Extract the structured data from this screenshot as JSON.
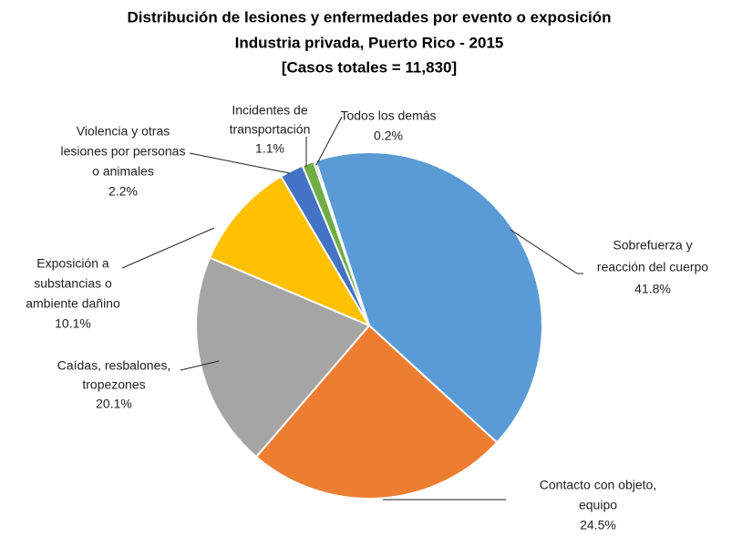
{
  "chart_data": {
    "type": "pie",
    "title": [
      "Distribución de lesiones y enfermedades por evento o exposición",
      "Industria privada, Puerto Rico - 2015",
      "[Casos totales = 11,830]"
    ],
    "categories": [
      [
        "Sobrefuerza y",
        "reacción del cuerpo"
      ],
      [
        "Contacto con objeto,",
        "equipo"
      ],
      [
        "Caídas, resbalones,",
        "tropezones"
      ],
      [
        "Exposición a",
        "substancias o",
        "ambiente dañino"
      ],
      [
        "Violencia y otras",
        "lesiones por personas",
        "o animales"
      ],
      [
        "Incidentes de",
        "transportación"
      ],
      [
        "Todos los demás"
      ]
    ],
    "values": [
      41.8,
      24.5,
      20.1,
      10.1,
      2.2,
      1.1,
      0.2
    ],
    "value_labels": [
      "41.8%",
      "24.5%",
      "20.1%",
      "10.1%",
      "2.2%",
      "1.1%",
      "0.2%"
    ],
    "colors": [
      "#5b9bd5",
      "#ed7d31",
      "#a5a5a5",
      "#ffc000",
      "#4472c4",
      "#70ad47",
      "#255e91"
    ]
  }
}
